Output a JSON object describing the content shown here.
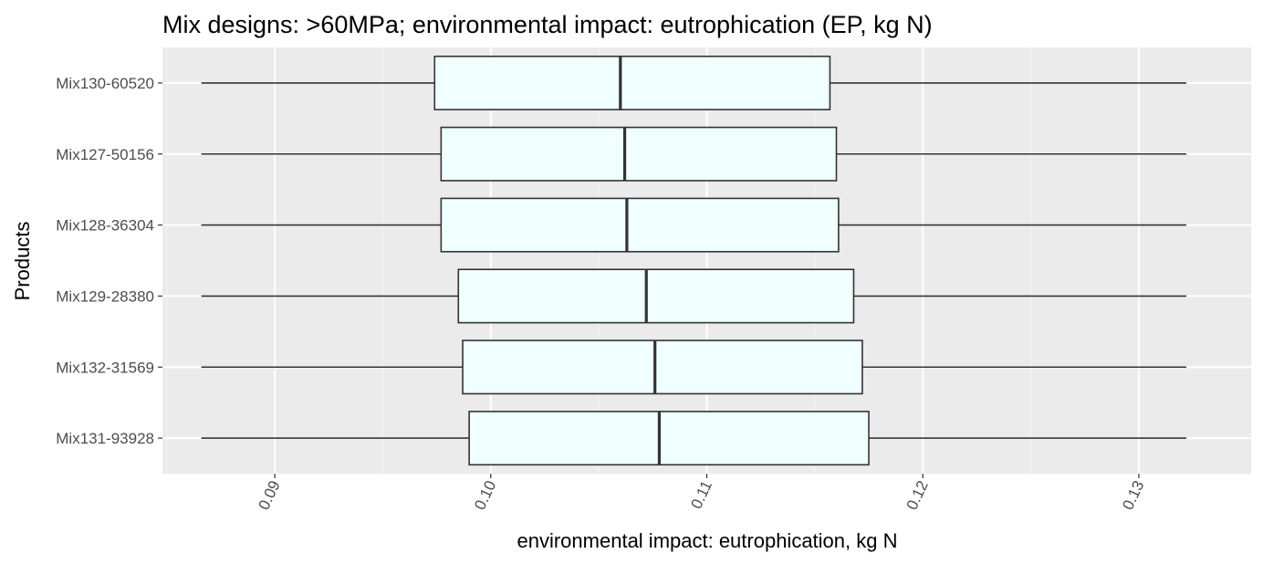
{
  "chart_data": {
    "type": "boxplot",
    "orientation": "horizontal",
    "title": "Mix designs: >60MPa; environmental impact: eutrophication (EP, kg N)",
    "xlabel": "environmental impact: eutrophication, kg N",
    "ylabel": "Products",
    "xlim": [
      0.0848,
      0.1352
    ],
    "x_ticks": [
      0.09,
      0.1,
      0.11,
      0.12,
      0.13
    ],
    "x_tick_labels": [
      "0.09",
      "0.10",
      "0.11",
      "0.12",
      "0.13"
    ],
    "x_tick_rotation_deg": -65,
    "grid": true,
    "colors": {
      "panel": "#ebebeb",
      "grid_major": "#ffffff",
      "grid_minor": "#f4f4f4",
      "box_fill": "#f0ffff",
      "box_stroke": "#333333"
    },
    "series": [
      {
        "category": "Mix130-60520",
        "whisker_low": 0.0866,
        "q1": 0.0974,
        "median": 0.106,
        "q3": 0.1157,
        "whisker_high": 0.1322
      },
      {
        "category": "Mix127-50156",
        "whisker_low": 0.0866,
        "q1": 0.0977,
        "median": 0.1062,
        "q3": 0.116,
        "whisker_high": 0.1322
      },
      {
        "category": "Mix128-36304",
        "whisker_low": 0.0866,
        "q1": 0.0977,
        "median": 0.1063,
        "q3": 0.1161,
        "whisker_high": 0.1322
      },
      {
        "category": "Mix129-28380",
        "whisker_low": 0.0866,
        "q1": 0.0985,
        "median": 0.1072,
        "q3": 0.1168,
        "whisker_high": 0.1322
      },
      {
        "category": "Mix132-31569",
        "whisker_low": 0.0866,
        "q1": 0.0987,
        "median": 0.1076,
        "q3": 0.1172,
        "whisker_high": 0.1322
      },
      {
        "category": "Mix131-93928",
        "whisker_low": 0.0866,
        "q1": 0.099,
        "median": 0.1078,
        "q3": 0.1175,
        "whisker_high": 0.1322
      }
    ]
  }
}
